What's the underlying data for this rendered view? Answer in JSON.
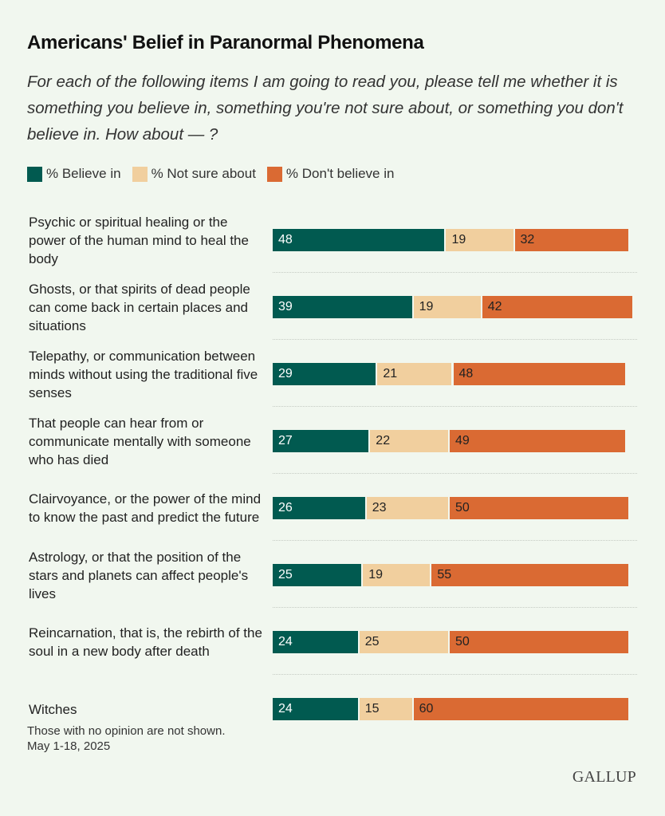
{
  "colors": {
    "believe": "#015a50",
    "not_sure": "#f1cf9e",
    "dont_believe": "#da6a33",
    "background": "#f1f7ef"
  },
  "header": {
    "title": "Americans' Belief in Paranormal Phenomena",
    "subtitle": "For each of the following items I am going to read you, please tell me whether it is something you believe in, something you're not sure about, or something you don't believe in. How about — ?"
  },
  "footer": {
    "note": "Those with no opinion are not shown.",
    "date": "May 1-18, 2025",
    "logo": "GALLUP"
  },
  "chart_data": {
    "type": "bar",
    "orientation": "horizontal",
    "stacked": true,
    "title": "Americans' Belief in Paranormal Phenomena",
    "legend_position": "top-left",
    "categories": [
      "Psychic or spiritual healing or the power of the human mind to heal the body",
      "Ghosts, or that spirits of dead people can come back in certain places and situations",
      "Telepathy, or communication between minds without using the traditional five senses",
      "That people can hear from or communicate mentally with someone who has died",
      "Clairvoyance, or the power of the mind to know the past and predict the future",
      "Astrology, or that the position of the stars and planets can affect people's lives",
      "Reincarnation, that is, the rebirth of the soul in a new body after death",
      "Witches"
    ],
    "series": [
      {
        "name": "% Believe in",
        "values": [
          48,
          39,
          29,
          27,
          26,
          25,
          24,
          24
        ]
      },
      {
        "name": "% Not sure about",
        "values": [
          19,
          19,
          21,
          22,
          23,
          19,
          25,
          15
        ]
      },
      {
        "name": "% Don't believe in",
        "values": [
          32,
          42,
          48,
          49,
          50,
          55,
          50,
          60
        ]
      }
    ],
    "xlim": [
      0,
      100
    ]
  }
}
